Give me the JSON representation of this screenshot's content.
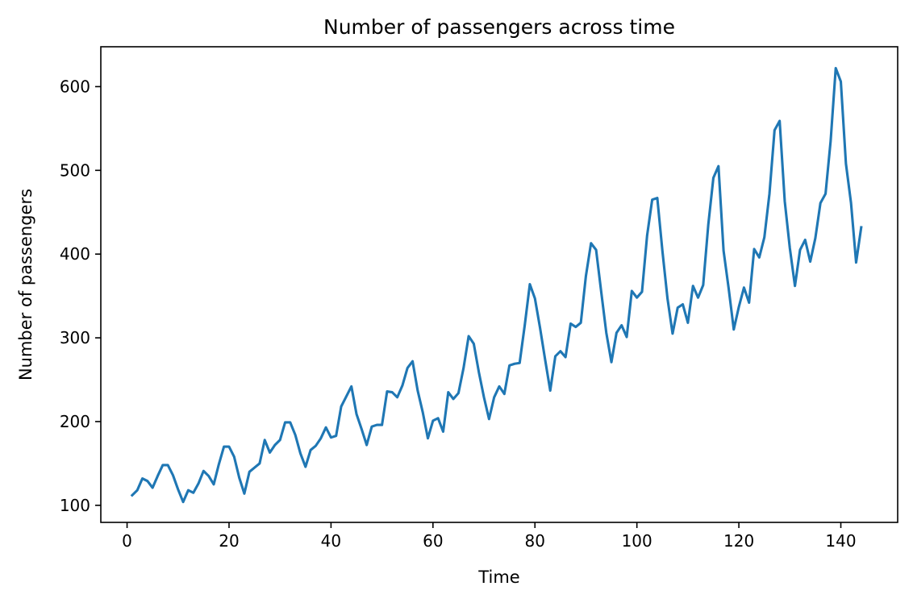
{
  "chart_data": {
    "type": "line",
    "title": "Number of passengers across time",
    "xlabel": "Time",
    "ylabel": "Number of passengers",
    "xlim": [
      -5.15,
      151.15
    ],
    "ylim": [
      79.6,
      647.6
    ],
    "xticks": [
      0,
      20,
      40,
      60,
      80,
      100,
      120,
      140
    ],
    "yticks": [
      100,
      200,
      300,
      400,
      500,
      600
    ],
    "grid": false,
    "legend": "none",
    "line_color": "#1f77b4",
    "series": [
      {
        "x": [
          1,
          2,
          3,
          4,
          5,
          6,
          7,
          8,
          9,
          10,
          11,
          12,
          13,
          14,
          15,
          16,
          17,
          18,
          19,
          20,
          21,
          22,
          23,
          24,
          25,
          26,
          27,
          28,
          29,
          30,
          31,
          32,
          33,
          34,
          35,
          36,
          37,
          38,
          39,
          40,
          41,
          42,
          43,
          44,
          45,
          46,
          47,
          48,
          49,
          50,
          51,
          52,
          53,
          54,
          55,
          56,
          57,
          58,
          59,
          60,
          61,
          62,
          63,
          64,
          65,
          66,
          67,
          68,
          69,
          70,
          71,
          72,
          73,
          74,
          75,
          76,
          77,
          78,
          79,
          80,
          81,
          82,
          83,
          84,
          85,
          86,
          87,
          88,
          89,
          90,
          91,
          92,
          93,
          94,
          95,
          96,
          97,
          98,
          99,
          100,
          101,
          102,
          103,
          104,
          105,
          106,
          107,
          108,
          109,
          110,
          111,
          112,
          113,
          114,
          115,
          116,
          117,
          118,
          119,
          120,
          121,
          122,
          123,
          124,
          125,
          126,
          127,
          128,
          129,
          130,
          131,
          132,
          133,
          134,
          135,
          136,
          137,
          138,
          139,
          140,
          141,
          142,
          143,
          144
        ],
        "values": [
          112,
          118,
          132,
          129,
          121,
          135,
          148,
          148,
          136,
          119,
          104,
          118,
          115,
          126,
          141,
          135,
          125,
          149,
          170,
          170,
          158,
          133,
          114,
          140,
          145,
          150,
          178,
          163,
          172,
          178,
          199,
          199,
          184,
          162,
          146,
          166,
          171,
          180,
          193,
          181,
          183,
          218,
          230,
          242,
          209,
          191,
          172,
          194,
          196,
          196,
          236,
          235,
          229,
          243,
          264,
          272,
          237,
          211,
          180,
          201,
          204,
          188,
          235,
          227,
          234,
          264,
          302,
          293,
          259,
          229,
          203,
          229,
          242,
          233,
          267,
          269,
          270,
          315,
          364,
          347,
          312,
          274,
          237,
          278,
          284,
          277,
          317,
          313,
          318,
          374,
          413,
          405,
          355,
          306,
          271,
          306,
          315,
          301,
          356,
          348,
          355,
          422,
          465,
          467,
          404,
          347,
          305,
          336,
          340,
          318,
          362,
          348,
          363,
          435,
          491,
          505,
          404,
          359,
          310,
          337,
          360,
          342,
          406,
          396,
          420,
          472,
          548,
          559,
          463,
          407,
          362,
          405,
          417,
          391,
          419,
          461,
          472,
          535,
          622,
          606,
          508,
          461,
          390,
          432
        ]
      }
    ]
  }
}
